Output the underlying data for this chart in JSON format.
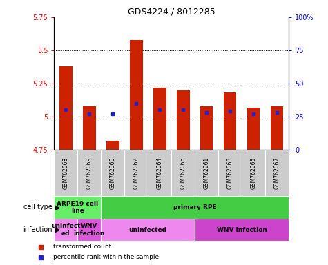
{
  "title": "GDS4224 / 8012285",
  "samples": [
    "GSM762068",
    "GSM762069",
    "GSM762060",
    "GSM762062",
    "GSM762064",
    "GSM762066",
    "GSM762061",
    "GSM762063",
    "GSM762065",
    "GSM762067"
  ],
  "transformed_counts": [
    5.38,
    5.08,
    4.82,
    5.58,
    5.22,
    5.2,
    5.08,
    5.18,
    5.07,
    5.08
  ],
  "percentile_ranks": [
    30,
    27,
    27,
    35,
    30,
    30,
    28,
    29,
    27,
    28
  ],
  "ylim_left": [
    4.75,
    5.75
  ],
  "ylim_right": [
    0,
    100
  ],
  "yticks_left": [
    4.75,
    5.0,
    5.25,
    5.5,
    5.75
  ],
  "yticks_left_labels": [
    "4.75",
    "5",
    "5.25",
    "5.5",
    "5.75"
  ],
  "yticks_right": [
    0,
    25,
    50,
    75,
    100
  ],
  "yticks_right_labels": [
    "0",
    "25",
    "50",
    "75",
    "100%"
  ],
  "bar_color": "#cc2200",
  "dot_color": "#2222cc",
  "bar_bottom": 4.75,
  "cell_type_groups": [
    {
      "text": "ARPE19 cell\nline",
      "start": 0,
      "end": 2,
      "color": "#66ee66"
    },
    {
      "text": "primary RPE",
      "start": 2,
      "end": 10,
      "color": "#44cc44"
    }
  ],
  "infection_groups": [
    {
      "text": "uninfect\ned",
      "start": 0,
      "end": 1,
      "color": "#ee88ee"
    },
    {
      "text": "WNV\ninfection",
      "start": 1,
      "end": 2,
      "color": "#dd55dd"
    },
    {
      "text": "uninfected",
      "start": 2,
      "end": 6,
      "color": "#ee88ee"
    },
    {
      "text": "WNV infection",
      "start": 6,
      "end": 10,
      "color": "#cc44cc"
    }
  ],
  "cell_type_label": "cell type",
  "infection_label": "infection",
  "legend_items": [
    {
      "label": "transformed count",
      "color": "#cc2200"
    },
    {
      "label": "percentile rank within the sample",
      "color": "#2222cc"
    }
  ],
  "bg_color": "#ffffff"
}
